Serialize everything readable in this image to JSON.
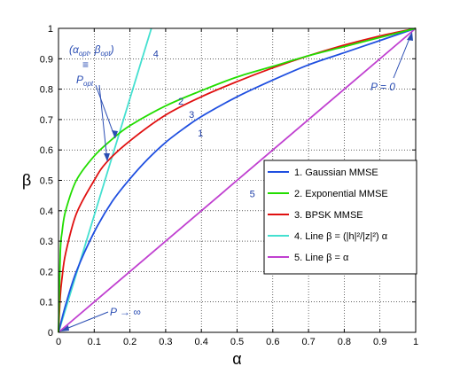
{
  "chart_data": {
    "type": "line",
    "xlabel": "α",
    "ylabel": "β",
    "xlim": [
      0,
      1
    ],
    "ylim": [
      0,
      1
    ],
    "xticks": [
      "0",
      "0.1",
      "0.2",
      "0.3",
      "0.4",
      "0.5",
      "0.6",
      "0.7",
      "0.8",
      "0.9",
      "1"
    ],
    "yticks": [
      "0",
      "0.1",
      "0.2",
      "0.3",
      "0.4",
      "0.5",
      "0.6",
      "0.7",
      "0.8",
      "0.9",
      "1"
    ],
    "grid": true,
    "legend_position": "lower-right",
    "series": [
      {
        "name": "1. Gaussian MMSE",
        "label": "1",
        "color": "#1f4fe0",
        "x": [
          0,
          0.02,
          0.05,
          0.1,
          0.15,
          0.2,
          0.25,
          0.3,
          0.35,
          0.4,
          0.5,
          0.6,
          0.7,
          0.8,
          0.9,
          1.0
        ],
        "y": [
          0,
          0.09,
          0.2,
          0.33,
          0.43,
          0.505,
          0.57,
          0.625,
          0.67,
          0.71,
          0.775,
          0.83,
          0.88,
          0.92,
          0.96,
          1.0
        ]
      },
      {
        "name": "2. Exponential MMSE",
        "label": "2",
        "color": "#22dd00",
        "x": [
          0,
          0.005,
          0.01,
          0.02,
          0.05,
          0.1,
          0.15,
          0.2,
          0.3,
          0.4,
          0.5,
          0.6,
          0.7,
          0.8,
          0.9,
          1.0
        ],
        "y": [
          0,
          0.26,
          0.33,
          0.4,
          0.5,
          0.58,
          0.635,
          0.68,
          0.745,
          0.795,
          0.84,
          0.875,
          0.91,
          0.94,
          0.97,
          1.0
        ]
      },
      {
        "name": "3. BPSK MMSE",
        "label": "3",
        "color": "#e01010",
        "x": [
          0,
          0.005,
          0.01,
          0.02,
          0.05,
          0.1,
          0.135,
          0.2,
          0.3,
          0.4,
          0.5,
          0.6,
          0.7,
          0.8,
          0.9,
          1.0
        ],
        "y": [
          0,
          0.12,
          0.18,
          0.26,
          0.39,
          0.5,
          0.56,
          0.63,
          0.715,
          0.775,
          0.825,
          0.87,
          0.91,
          0.945,
          0.975,
          1.0
        ]
      },
      {
        "name": "4. Line β = (|h|²/|z|²) α",
        "label": "4",
        "color": "#44e0d0",
        "x": [
          0,
          0.26
        ],
        "y": [
          0,
          1.0
        ]
      },
      {
        "name": "5. Line β = α",
        "label": "5",
        "color": "#c040d0",
        "x": [
          0,
          1
        ],
        "y": [
          0,
          1
        ]
      }
    ],
    "curve_labels": [
      {
        "text": "1",
        "x": 0.39,
        "y": 0.645
      },
      {
        "text": "2",
        "x": 0.335,
        "y": 0.75
      },
      {
        "text": "3",
        "x": 0.365,
        "y": 0.705
      },
      {
        "text": "4",
        "x": 0.265,
        "y": 0.905
      },
      {
        "text": "5",
        "x": 0.535,
        "y": 0.445
      }
    ],
    "annotations": {
      "popt_coords": "(αopt, βopt)",
      "equiv": "≡",
      "popt": "Popt",
      "p_zero": "P = 0",
      "p_infinity": "P → ∞"
    },
    "legend_entries": [
      "1. Gaussian MMSE",
      "2. Exponential MMSE",
      "3. BPSK MMSE",
      "4. Line β = (|h|²/|z|²) α",
      "5. Line β = α"
    ]
  }
}
